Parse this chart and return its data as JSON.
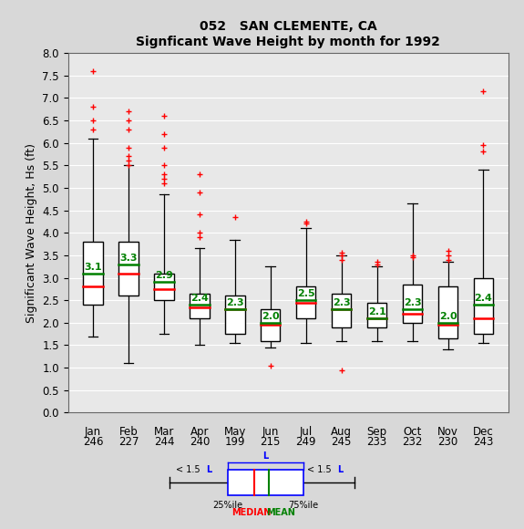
{
  "title1": "052   SAN CLEMENTE, CA",
  "title2": "Signficant Wave Height by month for 1992",
  "ylabel": "Significant Wave Height, Hs (ft)",
  "months": [
    "Jan",
    "Feb",
    "Mar",
    "Apr",
    "May",
    "Jun",
    "Jul",
    "Aug",
    "Sep",
    "Oct",
    "Nov",
    "Dec"
  ],
  "counts": [
    246,
    227,
    244,
    240,
    199,
    215,
    249,
    245,
    233,
    232,
    230,
    243
  ],
  "q1": [
    2.4,
    2.6,
    2.5,
    2.1,
    1.75,
    1.6,
    2.1,
    1.9,
    1.9,
    2.0,
    1.65,
    1.75
  ],
  "median": [
    2.8,
    3.1,
    2.75,
    2.35,
    2.3,
    1.95,
    2.45,
    2.3,
    2.1,
    2.2,
    1.95,
    2.1
  ],
  "q3": [
    3.8,
    3.8,
    3.1,
    2.65,
    2.6,
    2.3,
    2.8,
    2.65,
    2.45,
    2.85,
    2.8,
    3.0
  ],
  "whisker_low": [
    1.7,
    1.1,
    1.75,
    1.5,
    1.55,
    1.45,
    1.55,
    1.6,
    1.6,
    1.6,
    1.4,
    1.55
  ],
  "whisker_high": [
    6.1,
    5.5,
    4.85,
    3.65,
    3.85,
    3.25,
    4.1,
    3.5,
    3.25,
    4.65,
    3.35,
    5.4
  ],
  "mean": [
    3.1,
    3.3,
    2.9,
    2.4,
    2.3,
    2.0,
    2.5,
    2.3,
    2.1,
    2.3,
    2.0,
    2.4
  ],
  "outliers_red": [
    [
      7.6,
      6.8,
      6.5,
      6.3
    ],
    [
      6.7,
      6.5,
      6.3,
      5.9,
      5.7,
      5.6,
      5.5
    ],
    [
      6.6,
      6.2,
      5.9,
      5.5,
      5.3,
      5.2,
      5.1
    ],
    [
      5.3,
      4.9,
      4.4,
      4.0,
      3.9
    ],
    [
      4.35
    ],
    [],
    [
      4.25,
      4.2
    ],
    [
      3.55,
      3.5,
      3.4
    ],
    [
      3.35,
      3.3
    ],
    [
      3.5,
      3.45
    ],
    [
      3.6,
      3.5,
      3.4
    ],
    [
      7.15,
      5.95,
      5.8
    ]
  ],
  "outliers_low_red": [
    [],
    [],
    [],
    [],
    [],
    [
      1.05
    ],
    [],
    [
      0.95
    ],
    [],
    [],
    [],
    []
  ],
  "ylim": [
    0.0,
    8.0
  ],
  "yticks": [
    0.0,
    0.5,
    1.0,
    1.5,
    2.0,
    2.5,
    3.0,
    3.5,
    4.0,
    4.5,
    5.0,
    5.5,
    6.0,
    6.5,
    7.0,
    7.5,
    8.0
  ],
  "box_color": "#ffffff",
  "box_edge_color": "#000000",
  "median_color": "#ff0000",
  "mean_color": "#008000",
  "whisker_color": "#000000",
  "outlier_color": "#ff0000",
  "bg_color": "#d8d8d8",
  "plot_bg": "#e8e8e8",
  "grid_color": "#ffffff"
}
